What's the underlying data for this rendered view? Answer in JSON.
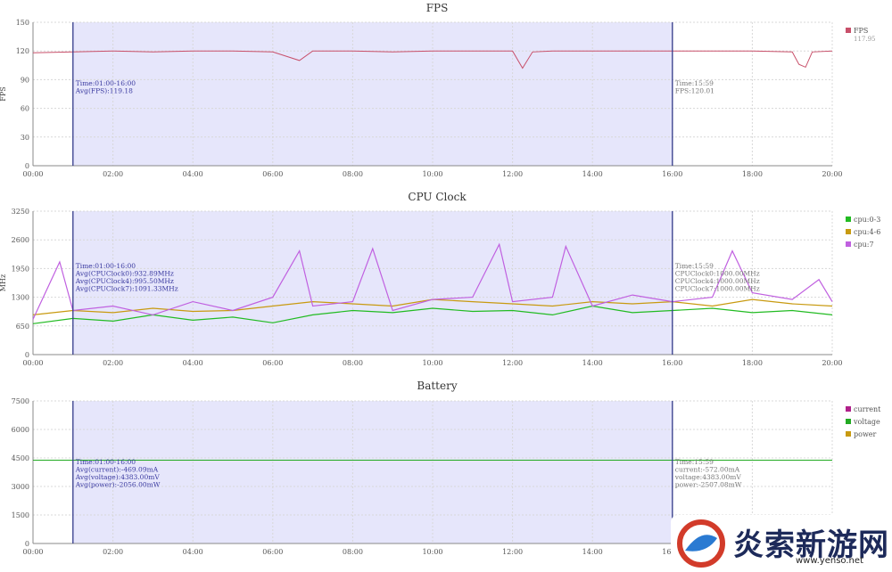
{
  "chart_data": [
    {
      "type": "line",
      "title": "FPS",
      "ylabel": "FPS",
      "xlabel": "",
      "x_range": [
        "00:00",
        "20:00"
      ],
      "x_ticks": [
        "00:00",
        "02:00",
        "04:00",
        "06:00",
        "08:00",
        "10:00",
        "12:00",
        "14:00",
        "16:00",
        "18:00",
        "20:00"
      ],
      "ylim": [
        0,
        150
      ],
      "y_ticks": [
        0,
        30,
        60,
        90,
        120,
        150
      ],
      "grid": true,
      "legend": "right",
      "series": [
        {
          "name": "FPS",
          "sub": "117.95",
          "color": "#c8506a",
          "x": [
            "00:00",
            "01:00",
            "02:00",
            "03:00",
            "04:00",
            "05:00",
            "06:00",
            "06:40",
            "07:00",
            "08:00",
            "09:00",
            "10:00",
            "11:00",
            "12:00",
            "12:15",
            "12:30",
            "13:00",
            "14:00",
            "15:00",
            "16:00",
            "17:00",
            "18:00",
            "19:00",
            "19:10",
            "19:20",
            "19:30",
            "20:00"
          ],
          "values": [
            118,
            119,
            120,
            119,
            120,
            120,
            119,
            110,
            120,
            120,
            119,
            120,
            120,
            120,
            102,
            119,
            120,
            120,
            120,
            120,
            120,
            120,
            119,
            106,
            103,
            119,
            120
          ]
        }
      ],
      "selection": [
        "01:00",
        "16:00"
      ],
      "annotations_left": [
        "Time:01:00-16:00",
        "Avg(FPS):119.18"
      ],
      "annotations_right": [
        "Time:15:59",
        "FPS:120.01"
      ]
    },
    {
      "type": "line",
      "title": "CPU Clock",
      "ylabel": "MHz",
      "xlabel": "",
      "x_range": [
        "00:00",
        "20:00"
      ],
      "x_ticks": [
        "00:00",
        "02:00",
        "04:00",
        "06:00",
        "08:00",
        "10:00",
        "12:00",
        "14:00",
        "16:00",
        "18:00",
        "20:00"
      ],
      "ylim": [
        0,
        3250
      ],
      "y_ticks": [
        0,
        650,
        1300,
        1950,
        2600,
        3250
      ],
      "grid": true,
      "legend": "right",
      "series": [
        {
          "name": "cpu:0-3",
          "color": "#22bb22",
          "x": [
            "00:00",
            "01:00",
            "02:00",
            "03:00",
            "04:00",
            "05:00",
            "06:00",
            "07:00",
            "08:00",
            "09:00",
            "10:00",
            "11:00",
            "12:00",
            "13:00",
            "14:00",
            "15:00",
            "16:00",
            "17:00",
            "18:00",
            "19:00",
            "20:00"
          ],
          "values": [
            700,
            820,
            760,
            900,
            780,
            850,
            720,
            900,
            1000,
            950,
            1050,
            980,
            1000,
            900,
            1100,
            950,
            1000,
            1050,
            950,
            1000,
            900
          ]
        },
        {
          "name": "cpu:4-6",
          "color": "#c89a10",
          "x": [
            "00:00",
            "01:00",
            "02:00",
            "03:00",
            "04:00",
            "05:00",
            "06:00",
            "07:00",
            "08:00",
            "09:00",
            "10:00",
            "11:00",
            "12:00",
            "13:00",
            "14:00",
            "15:00",
            "16:00",
            "17:00",
            "18:00",
            "19:00",
            "20:00"
          ],
          "values": [
            900,
            1000,
            950,
            1050,
            980,
            1000,
            1100,
            1200,
            1150,
            1100,
            1250,
            1200,
            1150,
            1100,
            1200,
            1150,
            1200,
            1100,
            1250,
            1150,
            1100
          ]
        },
        {
          "name": "cpu:7",
          "color": "#c060e0",
          "x": [
            "00:00",
            "00:40",
            "01:00",
            "02:00",
            "03:00",
            "04:00",
            "05:00",
            "06:00",
            "06:40",
            "07:00",
            "08:00",
            "08:30",
            "09:00",
            "10:00",
            "11:00",
            "11:40",
            "12:00",
            "13:00",
            "13:20",
            "14:00",
            "15:00",
            "16:00",
            "17:00",
            "17:30",
            "18:00",
            "19:00",
            "19:40",
            "20:00"
          ],
          "values": [
            800,
            2100,
            1000,
            1100,
            900,
            1200,
            1000,
            1300,
            2350,
            1100,
            1200,
            2400,
            1000,
            1250,
            1300,
            2500,
            1200,
            1300,
            2450,
            1100,
            1350,
            1200,
            1300,
            2350,
            1400,
            1250,
            1700,
            1200
          ]
        }
      ],
      "selection": [
        "01:00",
        "16:00"
      ],
      "annotations_left": [
        "Time:01:00-16:00",
        "Avg(CPUClock0):932.89MHz",
        "Avg(CPUClock4):995.50MHz",
        "Avg(CPUClock7):1091.33MHz"
      ],
      "annotations_right": [
        "Time:15:59",
        "CPUClock0:1000.00MHz",
        "CPUClock4:1000.00MHz",
        "CPUClock7:1000.00MHz"
      ]
    },
    {
      "type": "line",
      "title": "Battery",
      "ylabel": "",
      "xlabel": "",
      "x_range": [
        "00:00",
        "20:00"
      ],
      "x_ticks": [
        "00:00",
        "02:00",
        "04:00",
        "06:00",
        "08:00",
        "10:00",
        "12:00",
        "14:00",
        "16:00",
        "18:00",
        "20:00"
      ],
      "ylim": [
        0,
        7500
      ],
      "y_ticks": [
        0,
        1500,
        3000,
        4500,
        6000,
        7500
      ],
      "grid": true,
      "legend": "right",
      "series": [
        {
          "name": "current",
          "color": "#b0208a",
          "x": [],
          "values": []
        },
        {
          "name": "voltage",
          "color": "#22aa22",
          "x": [
            "00:00",
            "20:00"
          ],
          "values": [
            4383,
            4383
          ]
        },
        {
          "name": "power",
          "color": "#c89a10",
          "x": [],
          "values": []
        }
      ],
      "selection": [
        "01:00",
        "16:00"
      ],
      "annotations_left": [
        "Time:01:00-16:00",
        "Avg(current):-469.09mA",
        "Avg(voltage):4383.00mV",
        "Avg(power):-2056.00mW"
      ],
      "annotations_right": [
        "Time:15:59",
        "current:-572.00mA",
        "voltage:4383.00mV",
        "power:-2507.08mW"
      ]
    }
  ],
  "watermark": {
    "text": "炎索新游网",
    "url": "www.yenso.net"
  }
}
